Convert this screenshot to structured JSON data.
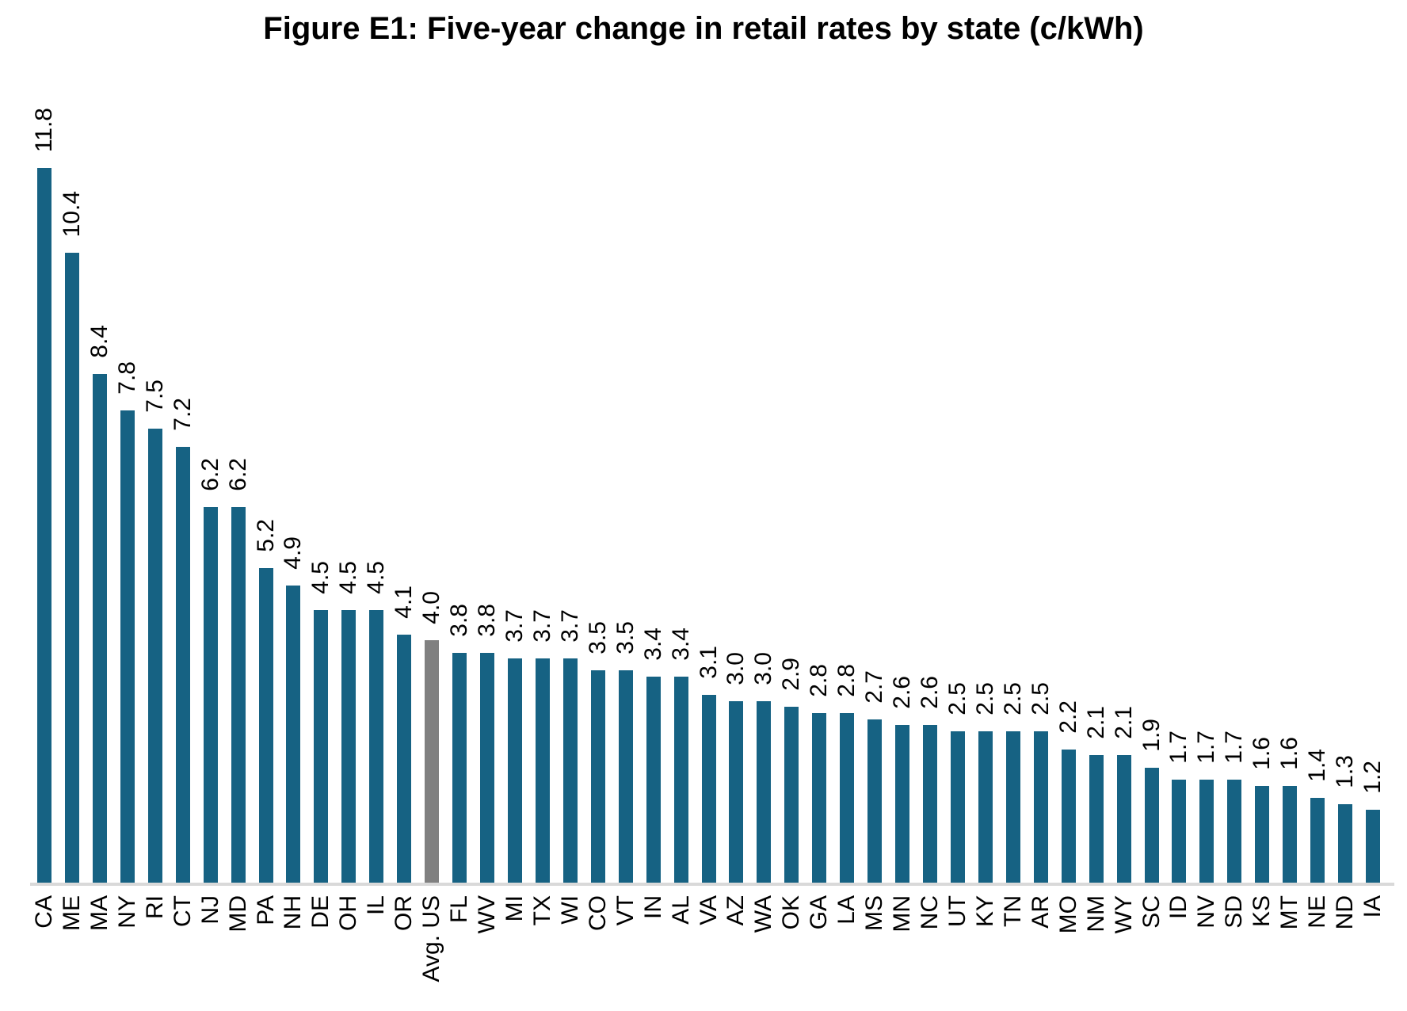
{
  "title": "Figure E1: Five-year change in retail rates by state (c/kWh)",
  "colors": {
    "bar": "#166283",
    "highlight": "#808080",
    "axis_line": "#D9D9D9",
    "text": "#000000",
    "background": "#FFFFFF"
  },
  "chart_data": {
    "type": "bar",
    "title": "Figure E1: Five-year change in retail rates by state (c/kWh)",
    "orientation": "vertical",
    "categories": [
      "CA",
      "ME",
      "MA",
      "NY",
      "RI",
      "CT",
      "NJ",
      "MD",
      "PA",
      "NH",
      "DE",
      "OH",
      "IL",
      "OR",
      "Avg. US",
      "FL",
      "WV",
      "MI",
      "TX",
      "WI",
      "CO",
      "VT",
      "IN",
      "AL",
      "VA",
      "AZ",
      "WA",
      "OK",
      "GA",
      "LA",
      "MS",
      "MN",
      "NC",
      "UT",
      "KY",
      "TN",
      "AR",
      "MO",
      "NM",
      "WY",
      "SC",
      "ID",
      "NV",
      "SD",
      "KS",
      "MT",
      "NE",
      "ND",
      "IA"
    ],
    "values": [
      11.8,
      10.4,
      8.4,
      7.8,
      7.5,
      7.2,
      6.2,
      6.2,
      5.2,
      4.9,
      4.5,
      4.5,
      4.5,
      4.1,
      4.0,
      3.8,
      3.8,
      3.7,
      3.7,
      3.7,
      3.5,
      3.5,
      3.4,
      3.4,
      3.1,
      3.0,
      3.0,
      2.9,
      2.8,
      2.8,
      2.7,
      2.6,
      2.6,
      2.5,
      2.5,
      2.5,
      2.5,
      2.2,
      2.1,
      2.1,
      1.9,
      1.7,
      1.7,
      1.7,
      1.6,
      1.6,
      1.4,
      1.3,
      1.2
    ],
    "value_labels": [
      "11.8",
      "10.4",
      "8.4",
      "7.8",
      "7.5",
      "7.2",
      "6.2",
      "6.2",
      "5.2",
      "4.9",
      "4.5",
      "4.5",
      "4.5",
      "4.1",
      "4.0",
      "3.8",
      "3.8",
      "3.7",
      "3.7",
      "3.7",
      "3.5",
      "3.5",
      "3.4",
      "3.4",
      "3.1",
      "3.0",
      "3.0",
      "2.9",
      "2.8",
      "2.8",
      "2.7",
      "2.6",
      "2.6",
      "2.5",
      "2.5",
      "2.5",
      "2.5",
      "2.2",
      "2.1",
      "2.1",
      "1.9",
      "1.7",
      "1.7",
      "1.7",
      "1.6",
      "1.6",
      "1.4",
      "1.3",
      "1.2"
    ],
    "xlabel": "",
    "ylabel": "",
    "ylim": [
      0,
      11.8
    ],
    "grid": false,
    "legend": "none",
    "highlight_category": "Avg. US",
    "bar_color": "#166283",
    "highlight_color": "#808080",
    "axis_line_color": "#D9D9D9",
    "value_labels_rotated_90": true,
    "x_tick_labels_rotated_90": true
  }
}
